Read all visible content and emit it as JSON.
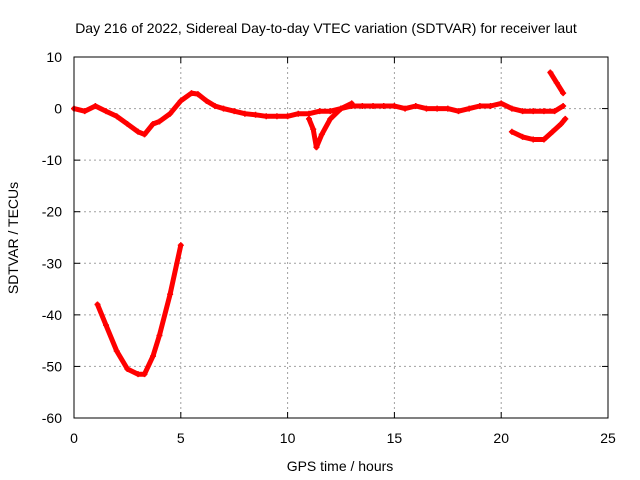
{
  "chart_data": {
    "type": "scatter",
    "title": "Day 216 of 2022, Sidereal Day-to-day VTEC variation (SDTVAR) for receiver laut",
    "xlabel": "GPS time / hours",
    "ylabel": "SDTVAR / TECUs",
    "xlim": [
      0,
      25
    ],
    "ylim": [
      -60,
      10
    ],
    "xticks": [
      0,
      5,
      10,
      15,
      20,
      25
    ],
    "yticks": [
      -60,
      -50,
      -40,
      -30,
      -20,
      -10,
      0,
      10
    ],
    "grid": true,
    "colors": {
      "series": "#ff0000"
    },
    "series": [
      {
        "name": "main-trace",
        "x": [
          0.0,
          0.5,
          1.0,
          1.5,
          2.0,
          2.5,
          3.0,
          3.3,
          3.7,
          4.0,
          4.5,
          5.0,
          5.5,
          5.8,
          6.2,
          6.6,
          7.0,
          7.5,
          8.0,
          8.5,
          9.0,
          9.5,
          10.0,
          10.5,
          11.0,
          11.5,
          12.0,
          12.5,
          13.0,
          13.5,
          14.0,
          14.5,
          15.0,
          15.5,
          16.0,
          16.5,
          17.0,
          17.5,
          18.0,
          18.5,
          19.0,
          19.5,
          20.0,
          20.5,
          21.0,
          21.5,
          22.0,
          22.5,
          22.9
        ],
        "y": [
          0.0,
          -0.5,
          0.5,
          -0.5,
          -1.5,
          -3.0,
          -4.5,
          -5.0,
          -3.0,
          -2.5,
          -1.0,
          1.5,
          3.0,
          2.8,
          1.5,
          0.5,
          0.0,
          -0.5,
          -1.0,
          -1.2,
          -1.5,
          -1.5,
          -1.5,
          -1.0,
          -1.0,
          -0.5,
          -0.5,
          0.0,
          0.5,
          0.5,
          0.5,
          0.5,
          0.5,
          0.0,
          0.5,
          0.0,
          0.0,
          0.0,
          -0.5,
          0.0,
          0.5,
          0.5,
          1.0,
          0.0,
          -0.5,
          -0.5,
          -0.5,
          -0.5,
          0.5
        ]
      },
      {
        "name": "dip-near-11h",
        "x": [
          11.0,
          11.2,
          11.35,
          11.6,
          12.0,
          12.5,
          13.0
        ],
        "y": [
          -2.0,
          -4.0,
          -7.5,
          -5.0,
          -2.0,
          0.0,
          1.0
        ]
      },
      {
        "name": "late-lower-arc",
        "x": [
          20.5,
          21.0,
          21.5,
          22.0,
          22.4,
          22.8,
          23.0
        ],
        "y": [
          -4.5,
          -5.5,
          -6.0,
          -6.0,
          -4.5,
          -3.0,
          -2.0
        ]
      },
      {
        "name": "late-upper-spike",
        "x": [
          22.3,
          22.6,
          22.9
        ],
        "y": [
          7.0,
          5.0,
          3.0
        ]
      },
      {
        "name": "low-u-curve",
        "x": [
          1.1,
          1.5,
          2.0,
          2.5,
          3.0,
          3.3,
          3.7,
          4.0,
          4.5,
          5.0
        ],
        "y": [
          -38.0,
          -42.0,
          -47.0,
          -50.5,
          -51.5,
          -51.5,
          -48.0,
          -44.0,
          -36.0,
          -26.5
        ]
      }
    ]
  }
}
